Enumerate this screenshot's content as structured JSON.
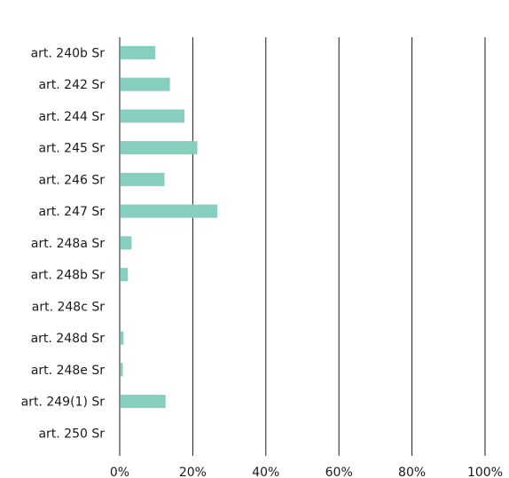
{
  "chart_data": {
    "type": "bar",
    "orientation": "horizontal",
    "categories": [
      "art. 240b Sr",
      "art. 242 Sr",
      "art. 244 Sr",
      "art. 245 Sr",
      "art. 246 Sr",
      "art. 247 Sr",
      "art. 248a Sr",
      "art. 248b Sr",
      "art. 248c Sr",
      "art. 248d Sr",
      "art. 248e Sr",
      "art. 249(1) Sr",
      "art. 250 Sr"
    ],
    "values": [
      9.5,
      13.5,
      17.5,
      21,
      12,
      26.5,
      3,
      2,
      0,
      0.8,
      0.6,
      12.3,
      0
    ],
    "xlim": [
      0,
      100
    ],
    "xticks": [
      0,
      20,
      40,
      60,
      80,
      100
    ],
    "tick_labels": [
      "0%",
      "20%",
      "40%",
      "60%",
      "80%",
      "100%"
    ],
    "bar_color": "#86cebd",
    "grid": "vertical",
    "title": "",
    "xlabel": "",
    "ylabel": ""
  }
}
